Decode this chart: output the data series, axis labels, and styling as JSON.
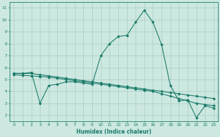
{
  "xlabel": "Humidex (Indice chaleur)",
  "ylabel": "",
  "bg_color": "#cce8e0",
  "grid_color": "#aaccc4",
  "line_color": "#1a7a6a",
  "xlim": [
    -0.5,
    23.5
  ],
  "ylim": [
    1.5,
    11.5
  ],
  "xticks": [
    0,
    1,
    2,
    3,
    4,
    5,
    6,
    7,
    8,
    9,
    10,
    11,
    12,
    13,
    14,
    15,
    16,
    17,
    18,
    19,
    20,
    21,
    22,
    23
  ],
  "yticks": [
    2,
    3,
    4,
    5,
    6,
    7,
    8,
    9,
    10,
    11
  ],
  "series1_x": [
    0,
    1,
    2,
    3,
    4,
    5,
    6,
    7,
    8,
    9,
    10,
    11,
    12,
    13,
    14,
    15,
    16,
    17,
    18,
    19,
    20,
    21,
    22,
    23
  ],
  "series1_y": [
    5.5,
    5.5,
    5.6,
    3.0,
    4.5,
    4.6,
    4.8,
    4.8,
    4.7,
    4.6,
    7.0,
    8.0,
    8.6,
    8.7,
    9.8,
    10.8,
    9.8,
    7.9,
    4.5,
    3.2,
    3.3,
    1.8,
    2.8,
    2.6
  ],
  "series2_x": [
    0,
    1,
    2,
    3,
    4,
    5,
    6,
    7,
    8,
    9,
    10,
    11,
    12,
    13,
    14,
    15,
    16,
    17,
    18,
    19,
    20,
    21,
    22,
    23
  ],
  "series2_y": [
    5.5,
    5.5,
    5.5,
    5.4,
    5.3,
    5.2,
    5.1,
    5.0,
    4.9,
    4.8,
    4.7,
    4.6,
    4.5,
    4.4,
    4.3,
    4.2,
    4.1,
    4.0,
    3.9,
    3.8,
    3.7,
    3.6,
    3.5,
    3.4
  ],
  "series3_x": [
    0,
    1,
    2,
    3,
    4,
    5,
    6,
    7,
    8,
    9,
    10,
    11,
    12,
    13,
    14,
    15,
    16,
    17,
    18,
    19,
    20,
    21,
    22,
    23
  ],
  "series3_y": [
    5.4,
    5.35,
    5.3,
    5.25,
    5.2,
    5.1,
    5.0,
    4.9,
    4.8,
    4.7,
    4.6,
    4.5,
    4.4,
    4.3,
    4.2,
    4.1,
    4.0,
    3.8,
    3.6,
    3.4,
    3.2,
    3.0,
    2.9,
    2.8
  ]
}
